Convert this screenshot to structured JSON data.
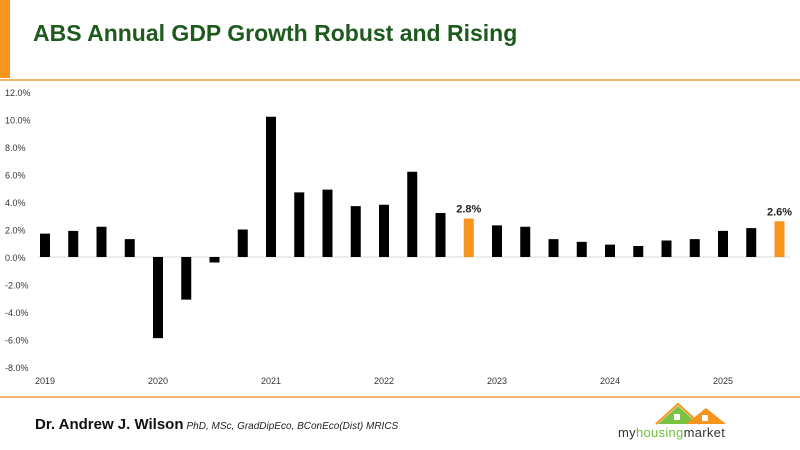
{
  "header": {
    "title": "ABS Annual GDP Growth Robust and Rising"
  },
  "footer": {
    "author": "Dr. Andrew J. Wilson",
    "credentials": "PhD, MSc, GradDipEco, BConEco(Dist) MRICS",
    "logo": {
      "part1": "my",
      "part2": "housing",
      "part3": "market"
    }
  },
  "colors": {
    "bar": "#000000",
    "highlight": "#f7941d",
    "title": "#1e5a1e"
  },
  "chart_data": {
    "type": "bar",
    "title": "ABS Annual GDP Growth Robust and Rising",
    "xlabel": "",
    "ylabel": "",
    "ylim": [
      -8,
      12
    ],
    "yticks": [
      12,
      10,
      8,
      6,
      4,
      2,
      0,
      -2,
      -4,
      -6,
      -8
    ],
    "ytick_labels": [
      "12.0%",
      "10.0%",
      "8.0%",
      "6.0%",
      "4.0%",
      "2.0%",
      "0.0%",
      "-2.0%",
      "-4.0%",
      "-6.0%",
      "-8.0%"
    ],
    "x_year_labels": [
      {
        "label": "2019",
        "index": 0
      },
      {
        "label": "2020",
        "index": 4
      },
      {
        "label": "2021",
        "index": 8
      },
      {
        "label": "2022",
        "index": 12
      },
      {
        "label": "2023",
        "index": 16
      },
      {
        "label": "2024",
        "index": 20
      },
      {
        "label": "2025",
        "index": 24
      }
    ],
    "values": [
      1.7,
      1.9,
      2.2,
      1.3,
      -5.9,
      -3.1,
      -0.4,
      2.0,
      10.2,
      4.7,
      4.9,
      3.7,
      3.8,
      6.2,
      3.2,
      2.8,
      2.3,
      2.2,
      1.3,
      1.1,
      0.9,
      0.8,
      1.2,
      1.3,
      1.9,
      2.1,
      2.6
    ],
    "highlighted": [
      15,
      26
    ],
    "data_labels": [
      {
        "index": 15,
        "text": "2.8%"
      },
      {
        "index": 26,
        "text": "2.6%"
      }
    ],
    "grid": false,
    "legend": "none"
  }
}
